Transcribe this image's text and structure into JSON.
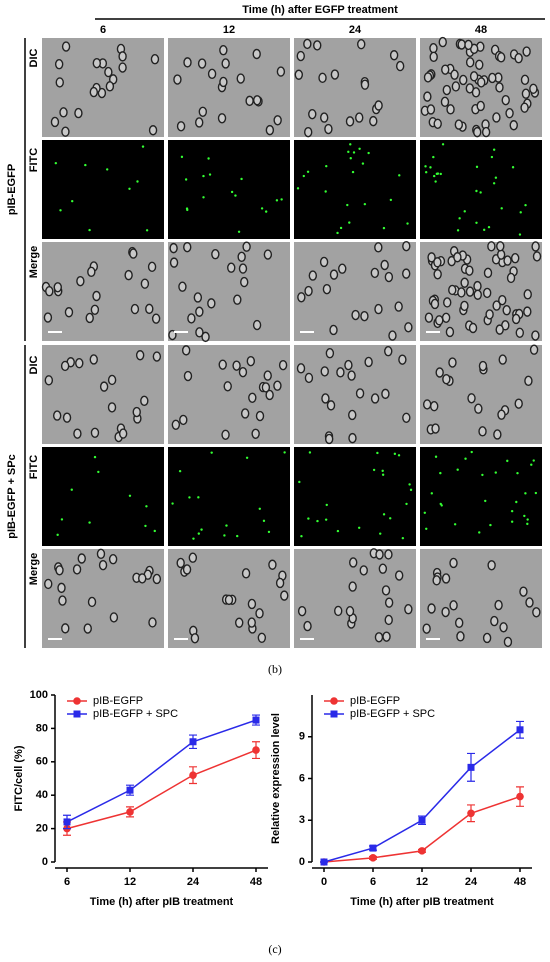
{
  "panel_b": {
    "column_header": "Time (h) after EGFP treatment",
    "columns": [
      "6",
      "12",
      "24",
      "48"
    ],
    "groups": [
      {
        "label": "pIB-EGFP",
        "rows": [
          "DIC",
          "FITC",
          "Merge"
        ]
      },
      {
        "label": "pIB-EGFP + SPc",
        "rows": [
          "DIC",
          "FITC",
          "Merge"
        ]
      }
    ],
    "caption": "(b)"
  },
  "caption_c": "(c)",
  "chart_data": [
    {
      "type": "line",
      "ylabel": "FITC/cell (%)",
      "xlabel": "Time (h) after pIB treatment",
      "categories": [
        "6",
        "12",
        "24",
        "48"
      ],
      "ylim": [
        0,
        100
      ],
      "yticks": [
        0,
        20,
        40,
        60,
        80,
        100
      ],
      "legend": "top-left",
      "series": [
        {
          "name": "pIB-EGFP",
          "color": "#ee3333",
          "marker": "circle",
          "values": [
            20,
            30,
            52,
            67
          ],
          "errors": [
            4,
            3,
            5,
            5
          ]
        },
        {
          "name": "pIB-EGFP + SPC",
          "color": "#2a2ae8",
          "marker": "square",
          "values": [
            24,
            43,
            72,
            85
          ],
          "errors": [
            4,
            3,
            4,
            3
          ]
        }
      ]
    },
    {
      "type": "line",
      "ylabel": "Relative expression level",
      "xlabel": "Time (h) after pIB treatment",
      "categories": [
        "0",
        "6",
        "12",
        "24",
        "48"
      ],
      "ylim": [
        0,
        12
      ],
      "yticks": [
        0,
        3,
        6,
        9
      ],
      "legend": "top-left",
      "series": [
        {
          "name": "pIB-EGFP",
          "color": "#ee3333",
          "marker": "circle",
          "values": [
            0,
            0.3,
            0.8,
            3.5,
            4.7
          ],
          "errors": [
            0,
            0.1,
            0.1,
            0.6,
            0.7
          ]
        },
        {
          "name": "pIB-EGFP + SPC",
          "color": "#2a2ae8",
          "marker": "square",
          "values": [
            0,
            1.0,
            3.0,
            6.8,
            9.5
          ],
          "errors": [
            0,
            0.15,
            0.3,
            1.0,
            0.6
          ]
        }
      ]
    }
  ]
}
